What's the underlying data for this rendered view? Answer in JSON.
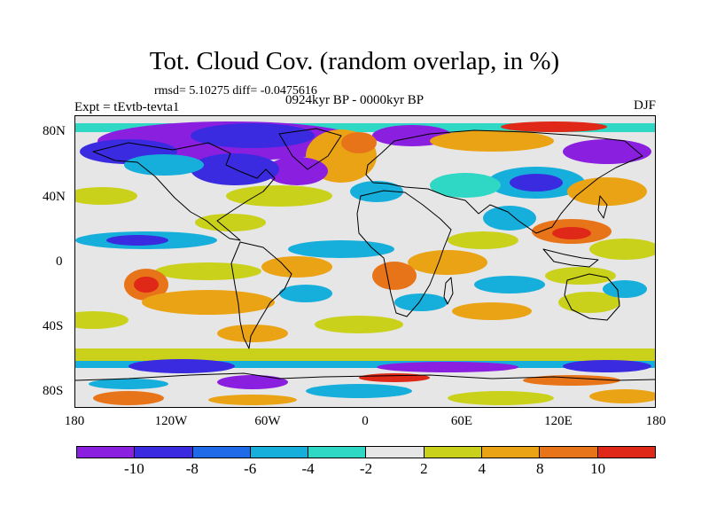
{
  "title": "Tot. Cloud Cov. (random overlap, in %)",
  "stats": "rmsd= 5.10275 diff= -0.0475616",
  "period": "0924kyr BP - 0000kyr BP",
  "experiment": "Expt = tEvtb-tevta1",
  "season": "DJF",
  "map": {
    "projection": "cylindrical equidistant",
    "lon_range": [
      -180,
      180
    ],
    "lat_range": [
      -90,
      90
    ],
    "lat_ticks": [
      "80N",
      "40N",
      "0",
      "40S",
      "80S"
    ],
    "lon_ticks": [
      "180",
      "120W",
      "60W",
      "0",
      "60E",
      "120E",
      "180"
    ],
    "fill_description": "contoured anomaly field of total cloud cover with continent coastlines"
  },
  "colorbar": {
    "colors": [
      "#8B1FE0",
      "#3A2BE0",
      "#1F6AE8",
      "#16AEDB",
      "#2ED8C4",
      "#E6E6E6",
      "#C9D11A",
      "#EBA316",
      "#E8741A",
      "#E02818"
    ],
    "labels": [
      "-10",
      "-8",
      "-6",
      "-4",
      "-2",
      "2",
      "4",
      "8",
      "10"
    ]
  }
}
